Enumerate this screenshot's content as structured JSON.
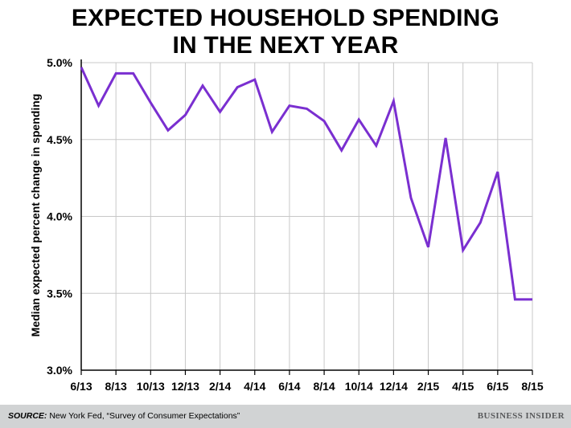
{
  "title_line1": "EXPECTED HOUSEHOLD SPENDING",
  "title_line2": "IN THE NEXT YEAR",
  "footer": {
    "source_label": "SOURCE:",
    "source_text": " New York Fed, “Survey of Consumer Expectations”",
    "brand": "BUSINESS INSIDER"
  },
  "colors": {
    "line": "#7a2fd0",
    "grid": "#c8c8c8",
    "axis": "#000000",
    "footer_bg": "#d1d3d4"
  },
  "chart_data": {
    "type": "line",
    "title": "EXPECTED HOUSEHOLD SPENDING IN THE NEXT YEAR",
    "xlabel": "",
    "ylabel": "Median expected percent change in spending",
    "ylim": [
      3.0,
      5.0
    ],
    "y_ticks": [
      "3.0%",
      "3.5%",
      "4.0%",
      "4.5%",
      "5.0%"
    ],
    "y_tick_values": [
      3.0,
      3.5,
      4.0,
      4.5,
      5.0
    ],
    "x_tick_labels": [
      "6/13",
      "8/13",
      "10/13",
      "12/13",
      "2/14",
      "4/14",
      "6/14",
      "8/14",
      "10/14",
      "12/14",
      "2/15",
      "4/15",
      "6/15",
      "8/15"
    ],
    "grid": true,
    "x": [
      "6/13",
      "7/13",
      "8/13",
      "9/13",
      "10/13",
      "11/13",
      "12/13",
      "1/14",
      "2/14",
      "3/14",
      "4/14",
      "5/14",
      "6/14",
      "7/14",
      "8/14",
      "9/14",
      "10/14",
      "11/14",
      "12/14",
      "1/15",
      "2/15",
      "3/15",
      "4/15",
      "5/15",
      "6/15",
      "7/15",
      "8/15"
    ],
    "series": [
      {
        "values": [
          4.97,
          4.72,
          4.93,
          4.93,
          4.74,
          4.56,
          4.66,
          4.85,
          4.68,
          4.84,
          4.89,
          4.55,
          4.72,
          4.7,
          4.62,
          4.43,
          4.63,
          4.46,
          4.75,
          4.12,
          3.8,
          4.51,
          3.78,
          3.96,
          4.29,
          3.46,
          3.46
        ]
      }
    ]
  }
}
